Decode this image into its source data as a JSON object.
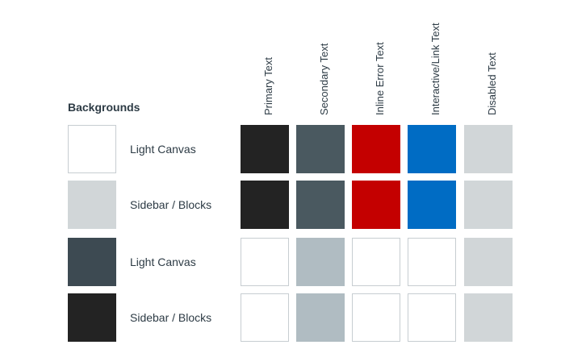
{
  "backgrounds_heading": "Backgrounds",
  "columns": [
    {
      "label": "Primary Text"
    },
    {
      "label": "Secondary Text"
    },
    {
      "label": "Inline Error Text"
    },
    {
      "label": "Interactive/Link Text"
    },
    {
      "label": "Disabled Text"
    }
  ],
  "rows": [
    {
      "label": "Light Canvas",
      "background_color": "#ffffff",
      "background_bordered": true,
      "cells": [
        {
          "color": "#232323",
          "bordered": false
        },
        {
          "color": "#4a5960",
          "bordered": false
        },
        {
          "color": "#c40000",
          "bordered": false
        },
        {
          "color": "#006cc4",
          "bordered": false
        },
        {
          "color": "#d1d6d8",
          "bordered": false
        }
      ]
    },
    {
      "label": "Sidebar / Blocks",
      "background_color": "#d1d6d8",
      "background_bordered": false,
      "cells": [
        {
          "color": "#232323",
          "bordered": false
        },
        {
          "color": "#4a5960",
          "bordered": false
        },
        {
          "color": "#c40000",
          "bordered": false
        },
        {
          "color": "#006cc4",
          "bordered": false
        },
        {
          "color": "#d1d6d8",
          "bordered": false
        }
      ]
    },
    {
      "label": "Light Canvas",
      "background_color": "#3d4a52",
      "background_bordered": false,
      "cells": [
        {
          "color": "#ffffff",
          "bordered": true
        },
        {
          "color": "#b0bcc2",
          "bordered": false
        },
        {
          "color": "#ffffff",
          "bordered": true
        },
        {
          "color": "#ffffff",
          "bordered": true
        },
        {
          "color": "#d1d6d8",
          "bordered": false
        }
      ]
    },
    {
      "label": "Sidebar / Blocks",
      "background_color": "#232323",
      "background_bordered": false,
      "cells": [
        {
          "color": "#ffffff",
          "bordered": true
        },
        {
          "color": "#b0bcc2",
          "bordered": false
        },
        {
          "color": "#ffffff",
          "bordered": true
        },
        {
          "color": "#ffffff",
          "bordered": true
        },
        {
          "color": "#d1d6d8",
          "bordered": false
        }
      ]
    }
  ]
}
